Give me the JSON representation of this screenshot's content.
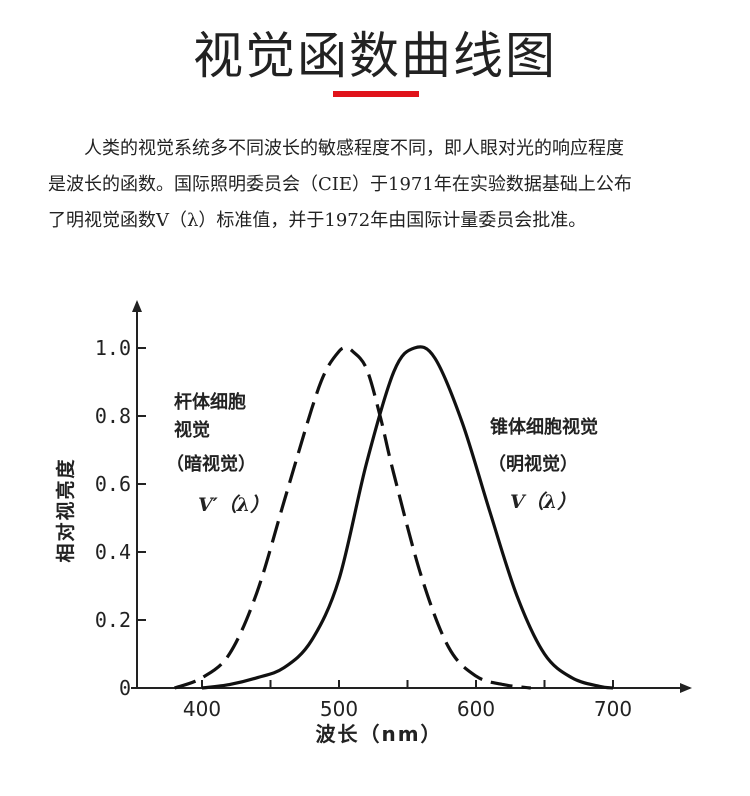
{
  "page": {
    "title": "视觉函数曲线图",
    "intro_lines": [
      "　　人类的视觉系统多不同波长的敏感程度不同，即人眼对光的响应程度",
      "是波长的函数。国际照明委员会（CIE）于1971年在实验数据基础上公布",
      "了明视觉函数V（λ）标准值，并于1972年由国际计量委员会批准。"
    ]
  },
  "chart_data": {
    "type": "line",
    "xlabel": "波长（nm）",
    "ylabel": "相对视亮度",
    "xlim": [
      380,
      700
    ],
    "ylim": [
      0,
      1.0
    ],
    "x_ticks": [
      400,
      500,
      600,
      700
    ],
    "y_ticks": [
      {
        "value": 0,
        "label": "0"
      },
      {
        "value": 0.2,
        "label": "0.2"
      },
      {
        "value": 0.4,
        "label": "0.4"
      },
      {
        "value": 0.6,
        "label": "0.6"
      },
      {
        "value": 0.8,
        "label": "0.8"
      },
      {
        "value": 1.0,
        "label": "1.0"
      }
    ],
    "grid": false,
    "series": [
      {
        "name": "杆体细胞视觉（暗视觉）",
        "style": "dashed",
        "color": "#111111",
        "x": [
          380,
          400,
          420,
          440,
          460,
          480,
          490,
          500,
          505,
          510,
          520,
          530,
          540,
          560,
          580,
          600,
          620,
          640
        ],
        "y": [
          0.0,
          0.03,
          0.1,
          0.28,
          0.55,
          0.82,
          0.93,
          0.99,
          1.0,
          0.99,
          0.94,
          0.8,
          0.63,
          0.33,
          0.12,
          0.035,
          0.01,
          0.0
        ]
      },
      {
        "name": "锥体细胞视觉（明视觉）",
        "style": "solid",
        "color": "#111111",
        "x": [
          400,
          420,
          440,
          460,
          480,
          500,
          520,
          540,
          555,
          570,
          590,
          610,
          630,
          650,
          670,
          690,
          700
        ],
        "y": [
          0.0,
          0.01,
          0.03,
          0.06,
          0.14,
          0.32,
          0.66,
          0.93,
          1.0,
          0.97,
          0.78,
          0.52,
          0.27,
          0.1,
          0.03,
          0.005,
          0.0
        ]
      }
    ],
    "annotations": [
      {
        "id": "rod_label",
        "lines": [
          "杆体细胞",
          "视觉",
          "（暗视觉）"
        ],
        "symbol": "V′（λ）"
      },
      {
        "id": "cone_label",
        "lines": [
          "锥体细胞视觉",
          "（明视觉）"
        ],
        "symbol": "V（λ）"
      }
    ]
  }
}
